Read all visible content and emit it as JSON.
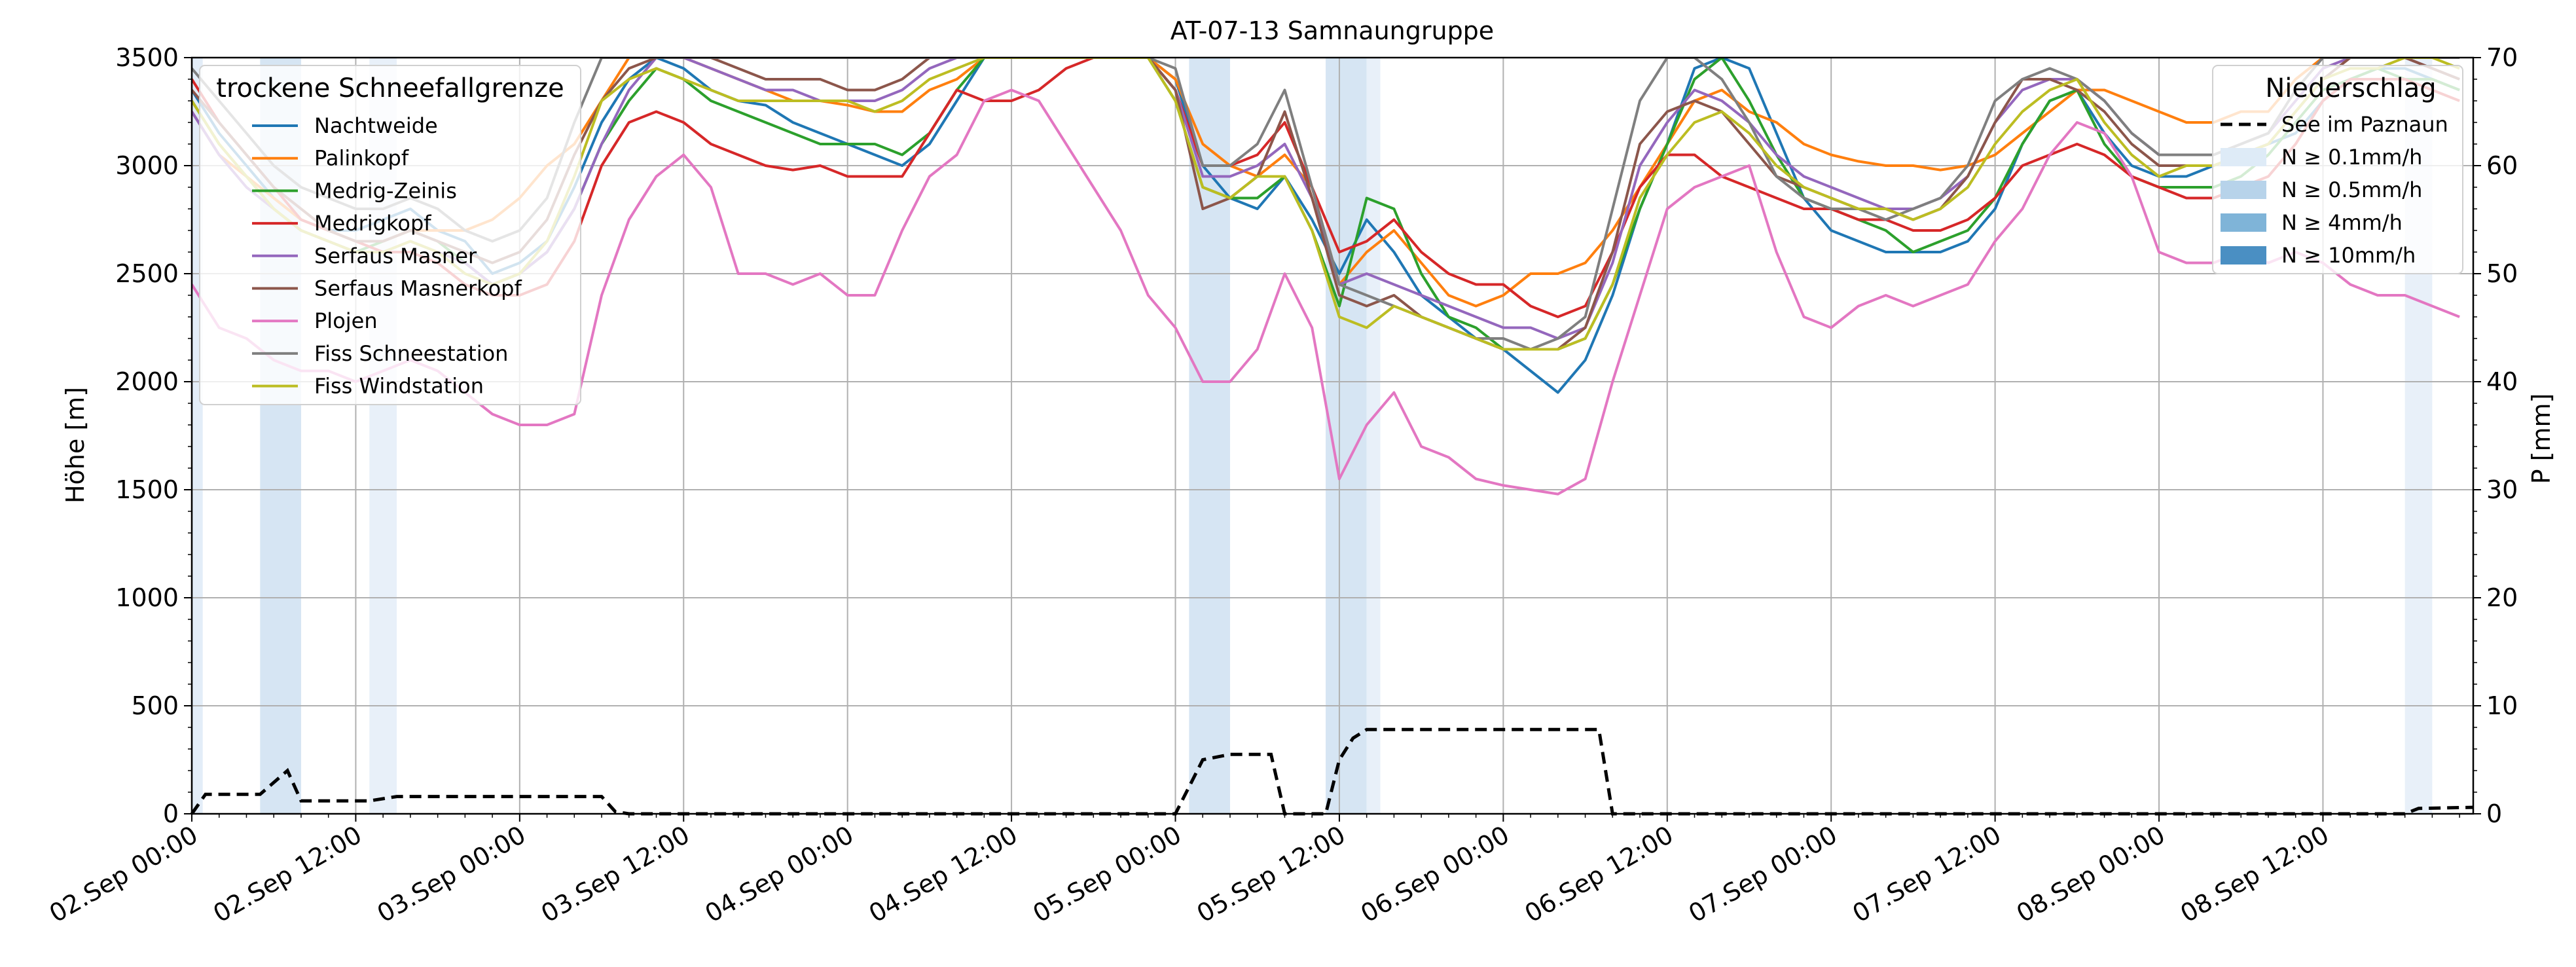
{
  "chart_data": {
    "type": "line",
    "title": "AT-07-13 Samnaungruppe",
    "ylabel": "Höhe [m]",
    "y2label": "P [mm]",
    "ylim": [
      0,
      3500
    ],
    "y2lim": [
      0,
      70
    ],
    "yticks": [
      0,
      500,
      1000,
      1500,
      2000,
      2500,
      3000,
      3500
    ],
    "y2ticks": [
      0,
      10,
      20,
      30,
      40,
      50,
      60,
      70
    ],
    "xrange_hours": [
      0,
      167
    ],
    "xticks": [
      {
        "h": 0,
        "label": "02.Sep 00:00"
      },
      {
        "h": 12,
        "label": "02.Sep 12:00"
      },
      {
        "h": 24,
        "label": "03.Sep 00:00"
      },
      {
        "h": 36,
        "label": "03.Sep 12:00"
      },
      {
        "h": 48,
        "label": "04.Sep 00:00"
      },
      {
        "h": 60,
        "label": "04.Sep 12:00"
      },
      {
        "h": 72,
        "label": "05.Sep 00:00"
      },
      {
        "h": 84,
        "label": "05.Sep 12:00"
      },
      {
        "h": 96,
        "label": "06.Sep 00:00"
      },
      {
        "h": 108,
        "label": "06.Sep 12:00"
      },
      {
        "h": 120,
        "label": "07.Sep 00:00"
      },
      {
        "h": 132,
        "label": "07.Sep 12:00"
      },
      {
        "h": 144,
        "label": "08.Sep 00:00"
      },
      {
        "h": 156,
        "label": "08.Sep 12:00"
      }
    ],
    "grid": true,
    "legend_left": {
      "title": "trockene Schneefallgrenze",
      "placement": "top-left"
    },
    "legend_right": {
      "title": "Niederschlag",
      "placement": "top-right",
      "items": [
        {
          "label": "See im Paznaun",
          "kind": "dashed-line",
          "color": "#000000"
        },
        {
          "label": "N ≥ 0.1mm/h",
          "kind": "patch",
          "color": "#deebf7"
        },
        {
          "label": "N ≥ 0.5mm/h",
          "kind": "patch",
          "color": "#b7d3ea"
        },
        {
          "label": "N ≥ 4mm/h",
          "kind": "patch",
          "color": "#7fb4d8"
        },
        {
          "label": "N ≥ 10mm/h",
          "kind": "patch",
          "color": "#4a8fc3"
        }
      ]
    },
    "precip_bands": [
      {
        "start": 0,
        "end": 0.8,
        "level": "N ≥ 0.1mm/h",
        "color": "#e3edf8"
      },
      {
        "start": 5,
        "end": 8,
        "level": "N ≥ 0.5mm/h",
        "color": "#d6e5f3"
      },
      {
        "start": 13,
        "end": 15,
        "level": "N ≥ 0.1mm/h",
        "color": "#e8f0f9"
      },
      {
        "start": 73,
        "end": 76,
        "level": "N ≥ 0.5mm/h",
        "color": "#d6e5f3"
      },
      {
        "start": 83,
        "end": 86,
        "level": "N ≥ 0.5mm/h",
        "color": "#d6e5f3"
      },
      {
        "start": 86,
        "end": 87,
        "level": "N ≥ 0.1mm/h",
        "color": "#e8f0f9"
      },
      {
        "start": 162,
        "end": 164,
        "level": "N ≥ 0.1mm/h",
        "color": "#e8f0f9"
      }
    ],
    "precip_line": {
      "name": "See im Paznaun",
      "axis": "right",
      "x": [
        0,
        1,
        5,
        7,
        8,
        12,
        13,
        15,
        30,
        31,
        32,
        40,
        72,
        73,
        74,
        76,
        79,
        80,
        83,
        84,
        85,
        86,
        103,
        104,
        162,
        163,
        167
      ],
      "y": [
        0,
        1.8,
        1.8,
        4,
        1.2,
        1.2,
        1.2,
        1.6,
        1.6,
        0.2,
        0,
        0,
        0,
        2.5,
        5,
        5.5,
        5.5,
        0,
        0,
        5,
        7,
        7.8,
        7.8,
        0,
        0,
        0.5,
        0.6
      ]
    },
    "x": [
      0,
      2,
      4,
      6,
      8,
      10,
      12,
      14,
      16,
      18,
      20,
      22,
      24,
      26,
      28,
      30,
      32,
      34,
      36,
      38,
      40,
      42,
      44,
      46,
      48,
      50,
      52,
      54,
      56,
      58,
      60,
      62,
      64,
      66,
      68,
      70,
      72,
      74,
      76,
      78,
      80,
      82,
      84,
      86,
      88,
      90,
      92,
      94,
      96,
      98,
      100,
      102,
      104,
      106,
      108,
      110,
      112,
      114,
      116,
      118,
      120,
      122,
      124,
      126,
      128,
      130,
      132,
      134,
      136,
      138,
      140,
      142,
      144,
      146,
      148,
      150,
      152,
      154,
      156,
      158,
      160,
      162,
      164,
      166
    ],
    "series": [
      {
        "name": "Nachtweide",
        "color": "#1f77b4",
        "values": [
          3350,
          3150,
          3000,
          2850,
          2750,
          2700,
          2700,
          2750,
          2800,
          2700,
          2650,
          2500,
          2550,
          2650,
          2900,
          3200,
          3400,
          3500,
          3450,
          3350,
          3300,
          3280,
          3200,
          3150,
          3100,
          3050,
          3000,
          3100,
          3300,
          3500,
          3500,
          3500,
          3500,
          3500,
          3500,
          3500,
          3400,
          3000,
          2850,
          2800,
          2950,
          2750,
          2500,
          2750,
          2600,
          2400,
          2300,
          2200,
          2150,
          2050,
          1950,
          2100,
          2400,
          2800,
          3100,
          3450,
          3500,
          3450,
          3150,
          2850,
          2700,
          2650,
          2600,
          2600,
          2600,
          2650,
          2800,
          3100,
          3300,
          3350,
          3150,
          3000,
          2950,
          2950,
          3000,
          3050,
          3100,
          3150,
          3300,
          3400,
          3450,
          3450,
          3400,
          3350
        ]
      },
      {
        "name": "Palinkopf",
        "color": "#ff7f0e",
        "values": [
          3250,
          3050,
          2950,
          2850,
          2750,
          2700,
          2650,
          2650,
          2700,
          2700,
          2700,
          2750,
          2850,
          3000,
          3100,
          3300,
          3500,
          3500,
          3500,
          3450,
          3400,
          3350,
          3300,
          3300,
          3280,
          3250,
          3250,
          3350,
          3400,
          3500,
          3500,
          3500,
          3500,
          3500,
          3500,
          3500,
          3400,
          3100,
          3000,
          2950,
          3050,
          2900,
          2450,
          2600,
          2700,
          2550,
          2400,
          2350,
          2400,
          2500,
          2500,
          2550,
          2700,
          2900,
          3100,
          3300,
          3350,
          3250,
          3200,
          3100,
          3050,
          3020,
          3000,
          3000,
          2980,
          3000,
          3050,
          3150,
          3250,
          3350,
          3350,
          3300,
          3250,
          3200,
          3200,
          3250,
          3250,
          3400,
          3500,
          3500,
          3500,
          3500,
          3500,
          3500
        ]
      },
      {
        "name": "Medrig-Zeinis",
        "color": "#2ca02c",
        "values": [
          3300,
          3100,
          2950,
          2800,
          2700,
          2650,
          2600,
          2650,
          2700,
          2650,
          2550,
          2450,
          2500,
          2600,
          2800,
          3100,
          3300,
          3450,
          3400,
          3300,
          3250,
          3200,
          3150,
          3100,
          3100,
          3100,
          3050,
          3150,
          3350,
          3500,
          3500,
          3500,
          3500,
          3500,
          3500,
          3500,
          3300,
          2900,
          2850,
          2850,
          2950,
          2700,
          2350,
          2850,
          2800,
          2500,
          2300,
          2250,
          2150,
          2150,
          2150,
          2200,
          2450,
          2800,
          3100,
          3400,
          3500,
          3300,
          3050,
          2850,
          2800,
          2750,
          2700,
          2600,
          2650,
          2700,
          2850,
          3100,
          3300,
          3350,
          3100,
          2950,
          2900,
          2900,
          2900,
          2950,
          3050,
          3200,
          3350,
          3400,
          3450,
          3400,
          3400,
          3350
        ]
      },
      {
        "name": "Medrigkopf",
        "color": "#d62728",
        "values": [
          3400,
          3200,
          3050,
          2900,
          2750,
          2700,
          2650,
          2600,
          2600,
          2550,
          2450,
          2400,
          2400,
          2450,
          2650,
          3000,
          3200,
          3250,
          3200,
          3100,
          3050,
          3000,
          2980,
          3000,
          2950,
          2950,
          2950,
          3150,
          3350,
          3300,
          3300,
          3350,
          3450,
          3500,
          3500,
          3500,
          3350,
          3000,
          3000,
          3050,
          3200,
          2900,
          2600,
          2650,
          2750,
          2600,
          2500,
          2450,
          2450,
          2350,
          2300,
          2350,
          2600,
          2900,
          3050,
          3050,
          2950,
          2900,
          2850,
          2800,
          2800,
          2750,
          2750,
          2700,
          2700,
          2750,
          2850,
          3000,
          3050,
          3100,
          3050,
          2950,
          2900,
          2850,
          2850,
          2900,
          2950,
          3100,
          3300,
          3400,
          3400,
          3400,
          3350,
          3300
        ]
      },
      {
        "name": "Serfaus Masner",
        "color": "#9467bd",
        "values": [
          3250,
          3050,
          2900,
          2800,
          2700,
          2650,
          2600,
          2600,
          2650,
          2600,
          2550,
          2450,
          2500,
          2600,
          2800,
          3100,
          3350,
          3500,
          3500,
          3450,
          3400,
          3350,
          3350,
          3300,
          3300,
          3300,
          3350,
          3450,
          3500,
          3500,
          3500,
          3500,
          3500,
          3500,
          3500,
          3500,
          3350,
          2950,
          2950,
          3000,
          3100,
          2850,
          2450,
          2500,
          2450,
          2400,
          2350,
          2300,
          2250,
          2250,
          2200,
          2250,
          2550,
          3000,
          3200,
          3350,
          3300,
          3200,
          3050,
          2950,
          2900,
          2850,
          2800,
          2800,
          2850,
          2950,
          3200,
          3350,
          3400,
          3400,
          3300,
          3150,
          3050,
          3050,
          3050,
          3100,
          3150,
          3300,
          3450,
          3500,
          3500,
          3500,
          3450,
          3400
        ]
      },
      {
        "name": "Serfaus Masnerkopf",
        "color": "#8c564b",
        "values": [
          3350,
          3200,
          3050,
          2900,
          2800,
          2700,
          2650,
          2650,
          2700,
          2650,
          2600,
          2550,
          2600,
          2750,
          3050,
          3300,
          3450,
          3500,
          3500,
          3500,
          3450,
          3400,
          3400,
          3400,
          3350,
          3350,
          3400,
          3500,
          3500,
          3500,
          3500,
          3500,
          3500,
          3500,
          3500,
          3500,
          3350,
          2800,
          2850,
          2950,
          3250,
          2850,
          2400,
          2350,
          2400,
          2300,
          2250,
          2200,
          2150,
          2150,
          2150,
          2250,
          2600,
          3100,
          3250,
          3300,
          3250,
          3100,
          2950,
          2900,
          2850,
          2800,
          2800,
          2750,
          2800,
          2950,
          3200,
          3400,
          3400,
          3350,
          3250,
          3100,
          3000,
          3000,
          3000,
          3050,
          3100,
          3250,
          3400,
          3500,
          3500,
          3500,
          3450,
          3400
        ]
      },
      {
        "name": "Plojen",
        "color": "#e377c2",
        "values": [
          2450,
          2250,
          2200,
          2100,
          2050,
          2050,
          2000,
          2050,
          2100,
          2050,
          1950,
          1850,
          1800,
          1800,
          1850,
          2400,
          2750,
          2950,
          3050,
          2900,
          2500,
          2500,
          2450,
          2500,
          2400,
          2400,
          2700,
          2950,
          3050,
          3300,
          3350,
          3300,
          3100,
          2900,
          2700,
          2400,
          2250,
          2000,
          2000,
          2150,
          2500,
          2250,
          1550,
          1800,
          1950,
          1700,
          1650,
          1550,
          1520,
          1500,
          1480,
          1550,
          2000,
          2400,
          2800,
          2900,
          2950,
          3000,
          2600,
          2300,
          2250,
          2350,
          2400,
          2350,
          2400,
          2450,
          2650,
          2800,
          3050,
          3200,
          3150,
          2950,
          2600,
          2550,
          2550,
          2600,
          2550,
          2600,
          2550,
          2450,
          2400,
          2400,
          2350,
          2300
        ]
      },
      {
        "name": "Fiss Schneestation",
        "color": "#7f7f7f",
        "values": [
          3450,
          3300,
          3150,
          3000,
          2900,
          2850,
          2800,
          2800,
          2850,
          2800,
          2700,
          2650,
          2700,
          2850,
          3200,
          3500,
          3500,
          3500,
          3500,
          3500,
          3500,
          3500,
          3500,
          3500,
          3500,
          3500,
          3500,
          3500,
          3500,
          3500,
          3500,
          3500,
          3500,
          3500,
          3500,
          3500,
          3450,
          3000,
          3000,
          3100,
          3350,
          2900,
          2450,
          2400,
          2350,
          2300,
          2250,
          2200,
          2200,
          2150,
          2200,
          2300,
          2800,
          3300,
          3500,
          3500,
          3400,
          3200,
          2950,
          2850,
          2800,
          2800,
          2750,
          2800,
          2850,
          3000,
          3300,
          3400,
          3450,
          3400,
          3300,
          3150,
          3050,
          3050,
          3050,
          3100,
          3150,
          3350,
          3500,
          3500,
          3500,
          3500,
          3500,
          3500
        ]
      },
      {
        "name": "Fiss Windstation",
        "color": "#bcbd22",
        "values": [
          3300,
          3100,
          2950,
          2800,
          2700,
          2650,
          2600,
          2600,
          2650,
          2600,
          2500,
          2450,
          2500,
          2650,
          2950,
          3300,
          3400,
          3450,
          3400,
          3350,
          3300,
          3300,
          3300,
          3300,
          3300,
          3250,
          3300,
          3400,
          3450,
          3500,
          3500,
          3500,
          3500,
          3500,
          3500,
          3500,
          3300,
          2900,
          2850,
          2950,
          2950,
          2700,
          2300,
          2250,
          2350,
          2300,
          2250,
          2200,
          2150,
          2150,
          2150,
          2200,
          2450,
          2850,
          3050,
          3200,
          3250,
          3150,
          3000,
          2900,
          2850,
          2800,
          2800,
          2750,
          2800,
          2900,
          3100,
          3250,
          3350,
          3400,
          3200,
          3050,
          2950,
          3000,
          3000,
          3050,
          3100,
          3250,
          3400,
          3450,
          3450,
          3500,
          3500,
          3450
        ]
      }
    ]
  }
}
